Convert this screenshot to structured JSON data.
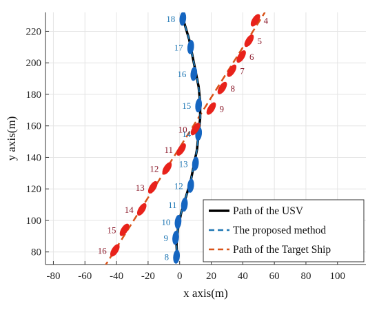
{
  "chart_data": {
    "type": "line",
    "xlabel": "x axis(m)",
    "ylabel": "y axis(m)",
    "xlim": [
      -85,
      118
    ],
    "ylim": [
      72,
      232
    ],
    "xticks": [
      -80,
      -60,
      -40,
      -20,
      0,
      20,
      40,
      60,
      80,
      100
    ],
    "yticks": [
      80,
      100,
      120,
      140,
      160,
      180,
      200,
      220
    ],
    "grid": true,
    "legend_position": "bottom-right",
    "series": [
      {
        "name": "Path of the USV",
        "style": "solid",
        "color": "#000000",
        "points": [
          [
            -1.5,
            75
          ],
          [
            -2,
            85
          ],
          [
            -1,
            95
          ],
          [
            1,
            105
          ],
          [
            4,
            115
          ],
          [
            7,
            125
          ],
          [
            9,
            135
          ],
          [
            11,
            145
          ],
          [
            12,
            155
          ],
          [
            13,
            165
          ],
          [
            13,
            175
          ],
          [
            12,
            185
          ],
          [
            10,
            195
          ],
          [
            8,
            205
          ],
          [
            6,
            215
          ],
          [
            3,
            225
          ],
          [
            2,
            230
          ]
        ]
      },
      {
        "name": "The proposed method",
        "style": "dashed",
        "color": "#1f77b4",
        "points": [
          [
            -1.5,
            75
          ],
          [
            -2,
            85
          ],
          [
            -1,
            95
          ],
          [
            1,
            105
          ],
          [
            4,
            115
          ],
          [
            7,
            125
          ],
          [
            9,
            135
          ],
          [
            11,
            145
          ],
          [
            12,
            155
          ],
          [
            13,
            165
          ],
          [
            13,
            175
          ],
          [
            12,
            185
          ],
          [
            10,
            195
          ],
          [
            8,
            205
          ],
          [
            6,
            215
          ],
          [
            3,
            225
          ],
          [
            2,
            230
          ]
        ]
      },
      {
        "name": "Path of the Target Ship",
        "style": "dashed",
        "color": "#d95319",
        "points": [
          [
            -48,
            70
          ],
          [
            54,
            232
          ]
        ]
      }
    ],
    "usv_markers": {
      "color": "#1565c0",
      "label_color": "#1f77b4",
      "items": [
        {
          "label": "8",
          "x": -2,
          "y": 77
        },
        {
          "label": "9",
          "x": -2.5,
          "y": 89
        },
        {
          "label": "10",
          "x": -1,
          "y": 99
        },
        {
          "label": "11",
          "x": 3,
          "y": 110
        },
        {
          "label": "12",
          "x": 7,
          "y": 122
        },
        {
          "label": "13",
          "x": 10,
          "y": 136
        },
        {
          "label": "14",
          "x": 12,
          "y": 155
        },
        {
          "label": "15",
          "x": 12,
          "y": 173
        },
        {
          "label": "16",
          "x": 9,
          "y": 193
        },
        {
          "label": "17",
          "x": 7,
          "y": 210
        },
        {
          "label": "18",
          "x": 2,
          "y": 228
        }
      ]
    },
    "target_markers": {
      "color": "#e8221b",
      "label_color": "#8b1a2b",
      "items": [
        {
          "label": "4",
          "x": 48,
          "y": 227
        },
        {
          "label": "5",
          "x": 44,
          "y": 214
        },
        {
          "label": "6",
          "x": 39,
          "y": 204
        },
        {
          "label": "7",
          "x": 33,
          "y": 195
        },
        {
          "label": "8",
          "x": 27,
          "y": 184
        },
        {
          "label": "9",
          "x": 20,
          "y": 171
        },
        {
          "label": "10",
          "x": 10,
          "y": 158
        },
        {
          "label": "11",
          "x": 1,
          "y": 145
        },
        {
          "label": "12",
          "x": -8,
          "y": 133
        },
        {
          "label": "13",
          "x": -17,
          "y": 121
        },
        {
          "label": "14",
          "x": -24,
          "y": 107
        },
        {
          "label": "15",
          "x": -35,
          "y": 94
        },
        {
          "label": "16",
          "x": -41,
          "y": 81
        }
      ]
    }
  }
}
